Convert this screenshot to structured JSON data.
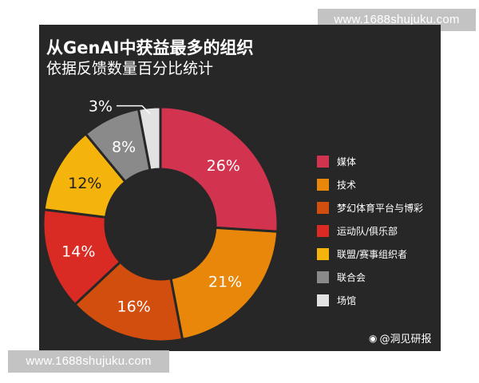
{
  "watermark_top": "www.1688shujuku.com",
  "watermark_bottom": "www.1688shujuku.com",
  "credit": {
    "icon": "weibo-icon",
    "text": "@洞见研报"
  },
  "chart_data": {
    "type": "pie",
    "title": "从GenAI中获益最多的组织",
    "subtitle": "依据反馈数量百分比统计",
    "donut": true,
    "legend_position": "right",
    "slices": [
      {
        "label": "媒体",
        "value": 26,
        "display": "26%",
        "color": "#d2344f"
      },
      {
        "label": "技术",
        "value": 21,
        "display": "21%",
        "color": "#e8870a"
      },
      {
        "label": "梦幻体育平台与博彩",
        "value": 16,
        "display": "16%",
        "color": "#d24e0e"
      },
      {
        "label": "运动队/俱乐部",
        "value": 14,
        "display": "14%",
        "color": "#d92a24"
      },
      {
        "label": "联盟/赛事组织者",
        "value": 12,
        "display": "12%",
        "color": "#f5b40c"
      },
      {
        "label": "联合会",
        "value": 8,
        "display": "8%",
        "color": "#8a8a8a"
      },
      {
        "label": "场馆",
        "value": 3,
        "display": "3%",
        "color": "#e2e2e2"
      }
    ]
  }
}
